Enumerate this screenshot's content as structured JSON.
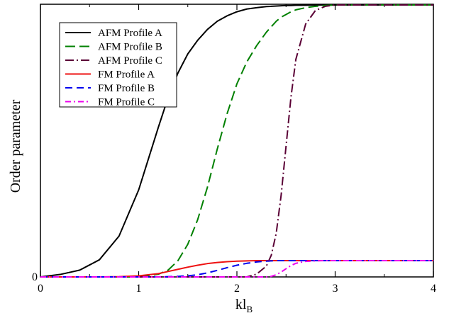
{
  "chart_data": {
    "type": "line",
    "title": "",
    "xlabel": "kl",
    "xlabel_sub": "B",
    "ylabel": "Order parameter",
    "xlim": [
      0,
      4
    ],
    "ylim": [
      0,
      1.0
    ],
    "xticks": [
      "0",
      "1",
      "2",
      "3",
      "4"
    ],
    "yticks": [
      "0"
    ],
    "grid": false,
    "legend_position": "top-left",
    "x": [
      0,
      0.2,
      0.4,
      0.6,
      0.8,
      1.0,
      1.2,
      1.3,
      1.4,
      1.5,
      1.6,
      1.7,
      1.8,
      1.9,
      2.0,
      2.1,
      2.2,
      2.3,
      2.35,
      2.4,
      2.45,
      2.5,
      2.55,
      2.6,
      2.7,
      2.8,
      2.9,
      3.0,
      3.2,
      3.4,
      3.6,
      3.8,
      4.0
    ],
    "series": [
      {
        "name": "AFM Profile A",
        "color": "#000000",
        "dash": "",
        "values": [
          0.0,
          0.009,
          0.025,
          0.063,
          0.15,
          0.32,
          0.55,
          0.66,
          0.75,
          0.82,
          0.87,
          0.91,
          0.94,
          0.96,
          0.975,
          0.985,
          0.99,
          0.994,
          0.995,
          0.996,
          0.997,
          0.998,
          0.998,
          0.999,
          0.999,
          1.0,
          1.0,
          1.0,
          1.0,
          1.0,
          1.0,
          1.0,
          1.0
        ]
      },
      {
        "name": "AFM Profile B",
        "color": "#008000",
        "dash": "14 6",
        "values": [
          0.0,
          0.0,
          0.0,
          0.0,
          0.0,
          0.0,
          0.01,
          0.025,
          0.06,
          0.12,
          0.21,
          0.33,
          0.47,
          0.6,
          0.71,
          0.79,
          0.85,
          0.9,
          0.92,
          0.94,
          0.955,
          0.965,
          0.975,
          0.982,
          0.99,
          0.995,
          0.998,
          1.0,
          1.0,
          1.0,
          1.0,
          1.0,
          1.0
        ]
      },
      {
        "name": "AFM Profile C",
        "color": "#5a0035",
        "dash": "12 4 2 4",
        "values": [
          0.0,
          0.0,
          0.0,
          0.0,
          0.0,
          0.0,
          0.0,
          0.0,
          0.0,
          0.0,
          0.0,
          0.0,
          0.0,
          0.0,
          0.0,
          0.0,
          0.01,
          0.04,
          0.08,
          0.16,
          0.3,
          0.48,
          0.66,
          0.8,
          0.93,
          0.98,
          0.995,
          1.0,
          1.0,
          1.0,
          1.0,
          1.0,
          1.0
        ]
      },
      {
        "name": "FM Profile A",
        "color": "#ee1111",
        "dash": "",
        "values": [
          0.0,
          0.0,
          0.0,
          0.0,
          0.001,
          0.004,
          0.012,
          0.02,
          0.028,
          0.036,
          0.043,
          0.049,
          0.053,
          0.056,
          0.058,
          0.059,
          0.06,
          0.06,
          0.06,
          0.06,
          0.06,
          0.06,
          0.06,
          0.06,
          0.06,
          0.06,
          0.06,
          0.06,
          0.06,
          0.06,
          0.06,
          0.06,
          0.06
        ]
      },
      {
        "name": "FM Profile B",
        "color": "#0000ee",
        "dash": "10 6",
        "values": [
          0.0,
          0.0,
          0.0,
          0.0,
          0.0,
          0.0,
          0.0,
          0.001,
          0.002,
          0.004,
          0.008,
          0.015,
          0.024,
          0.034,
          0.043,
          0.05,
          0.055,
          0.058,
          0.059,
          0.06,
          0.06,
          0.06,
          0.06,
          0.06,
          0.06,
          0.06,
          0.06,
          0.06,
          0.06,
          0.06,
          0.06,
          0.06,
          0.06
        ]
      },
      {
        "name": "FM Profile C",
        "color": "#ee00ee",
        "dash": "8 4 2 4",
        "values": [
          0.0,
          0.0,
          0.0,
          0.0,
          0.0,
          0.0,
          0.0,
          0.0,
          0.0,
          0.0,
          0.0,
          0.0,
          0.0,
          0.0,
          0.0,
          0.0,
          0.0,
          0.0,
          0.002,
          0.008,
          0.018,
          0.03,
          0.042,
          0.05,
          0.057,
          0.059,
          0.06,
          0.06,
          0.06,
          0.06,
          0.06,
          0.06,
          0.06
        ]
      }
    ]
  }
}
